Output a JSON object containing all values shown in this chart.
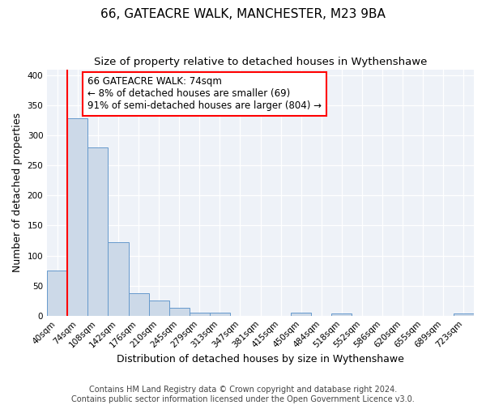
{
  "title": "66, GATEACRE WALK, MANCHESTER, M23 9BA",
  "subtitle": "Size of property relative to detached houses in Wythenshawe",
  "xlabel": "Distribution of detached houses by size in Wythenshawe",
  "ylabel": "Number of detached properties",
  "bin_labels": [
    "40sqm",
    "74sqm",
    "108sqm",
    "142sqm",
    "176sqm",
    "210sqm",
    "245sqm",
    "279sqm",
    "313sqm",
    "347sqm",
    "381sqm",
    "415sqm",
    "450sqm",
    "484sqm",
    "518sqm",
    "552sqm",
    "586sqm",
    "620sqm",
    "655sqm",
    "689sqm",
    "723sqm"
  ],
  "bar_values": [
    75,
    328,
    280,
    122,
    38,
    25,
    13,
    5,
    5,
    0,
    0,
    0,
    5,
    0,
    3,
    0,
    0,
    0,
    0,
    0,
    3
  ],
  "bar_color": "#ccd9e8",
  "bar_edge_color": "#6699cc",
  "property_line_bin_index": 1,
  "annotation_text": "66 GATEACRE WALK: 74sqm\n← 8% of detached houses are smaller (69)\n91% of semi-detached houses are larger (804) →",
  "annotation_box_color": "white",
  "annotation_box_edge_color": "red",
  "red_line_color": "red",
  "ylim": [
    0,
    410
  ],
  "yticks": [
    0,
    50,
    100,
    150,
    200,
    250,
    300,
    350,
    400
  ],
  "footer_line1": "Contains HM Land Registry data © Crown copyright and database right 2024.",
  "footer_line2": "Contains public sector information licensed under the Open Government Licence v3.0.",
  "title_fontsize": 11,
  "subtitle_fontsize": 9.5,
  "xlabel_fontsize": 9,
  "ylabel_fontsize": 9,
  "annotation_fontsize": 8.5,
  "footer_fontsize": 7,
  "tick_fontsize": 7.5
}
